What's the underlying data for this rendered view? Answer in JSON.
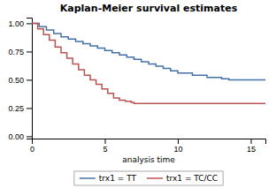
{
  "chart_data": {
    "type": "step",
    "title": "Kaplan-Meier survival estimates",
    "x_label": "analysis time",
    "xlim": [
      0,
      16
    ],
    "ylim": [
      -0.02,
      1.05
    ],
    "xticks": [
      0,
      5,
      10,
      15
    ],
    "yticks": [
      {
        "value": 0.0,
        "label": "0.00"
      },
      {
        "value": 0.25,
        "label": "0.25"
      },
      {
        "value": 0.5,
        "label": "0.50"
      },
      {
        "value": 0.75,
        "label": "0.75"
      },
      {
        "value": 1.0,
        "label": "1.00"
      }
    ],
    "grid": false,
    "legend": "bottom",
    "series": [
      {
        "name": "trx1 = TT",
        "color": "#4472a8",
        "x": [
          0,
          0.5,
          1.0,
          1.5,
          2.0,
          2.5,
          3.0,
          3.5,
          4.0,
          4.5,
          5.0,
          5.5,
          6.0,
          6.5,
          7.0,
          7.5,
          8.0,
          8.5,
          9.0,
          9.5,
          10.0,
          11.0,
          12.0,
          13.0,
          13.5,
          16.0
        ],
        "values": [
          1.0,
          0.97,
          0.94,
          0.91,
          0.88,
          0.86,
          0.84,
          0.82,
          0.8,
          0.78,
          0.76,
          0.74,
          0.72,
          0.7,
          0.68,
          0.66,
          0.64,
          0.62,
          0.6,
          0.58,
          0.56,
          0.54,
          0.52,
          0.51,
          0.5,
          0.5
        ]
      },
      {
        "name": "trx1 = TC/CC",
        "color": "#b85450",
        "x": [
          0,
          0.4,
          0.8,
          1.2,
          1.6,
          2.0,
          2.4,
          2.8,
          3.2,
          3.6,
          4.0,
          4.4,
          4.8,
          5.2,
          5.6,
          6.0,
          6.4,
          6.8,
          7.0,
          7.5,
          16.0
        ],
        "values": [
          1.0,
          0.95,
          0.9,
          0.85,
          0.79,
          0.74,
          0.69,
          0.64,
          0.59,
          0.54,
          0.5,
          0.46,
          0.42,
          0.38,
          0.34,
          0.32,
          0.31,
          0.3,
          0.29,
          0.29,
          0.29
        ]
      }
    ]
  }
}
